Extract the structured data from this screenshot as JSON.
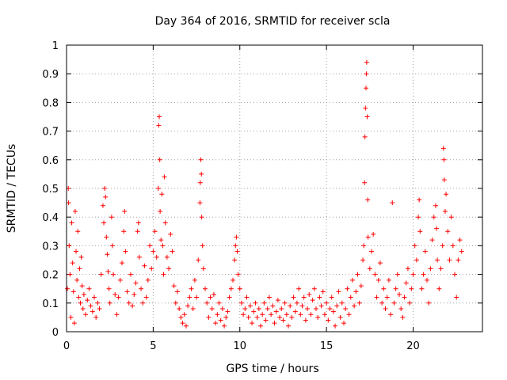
{
  "chart_data": {
    "type": "scatter",
    "title": "Day 364 of 2016, SRMTID for receiver scla",
    "xlabel": "GPS time / hours",
    "ylabel": "SRMTID / TECUs",
    "xlim": [
      0,
      24
    ],
    "ylim": [
      0,
      1
    ],
    "xticks": [
      "0",
      "5",
      "10",
      "15",
      "20"
    ],
    "yticks": [
      "0",
      "0.1",
      "0.2",
      "0.3",
      "0.4",
      "0.5",
      "0.6",
      "0.7",
      "0.8",
      "0.9",
      "1"
    ],
    "grid": true,
    "marker": "+",
    "color": "#ff0000",
    "series": [
      {
        "name": "scla",
        "points": [
          [
            0.05,
            0.15
          ],
          [
            0.1,
            0.5
          ],
          [
            0.12,
            0.45
          ],
          [
            0.15,
            0.3
          ],
          [
            0.2,
            0.2
          ],
          [
            0.25,
            0.05
          ],
          [
            0.3,
            0.38
          ],
          [
            0.35,
            0.24
          ],
          [
            0.4,
            0.14
          ],
          [
            0.45,
            0.03
          ],
          [
            0.5,
            0.42
          ],
          [
            0.55,
            0.28
          ],
          [
            0.6,
            0.18
          ],
          [
            0.65,
            0.35
          ],
          [
            0.7,
            0.12
          ],
          [
            0.75,
            0.22
          ],
          [
            0.8,
            0.1
          ],
          [
            0.85,
            0.26
          ],
          [
            0.9,
            0.16
          ],
          [
            0.95,
            0.08
          ],
          [
            1.0,
            0.13
          ],
          [
            1.1,
            0.06
          ],
          [
            1.2,
            0.11
          ],
          [
            1.3,
            0.15
          ],
          [
            1.4,
            0.09
          ],
          [
            1.5,
            0.07
          ],
          [
            1.6,
            0.12
          ],
          [
            1.7,
            0.05
          ],
          [
            1.8,
            0.1
          ],
          [
            1.9,
            0.08
          ],
          [
            2.0,
            0.2
          ],
          [
            2.1,
            0.44
          ],
          [
            2.15,
            0.38
          ],
          [
            2.2,
            0.5
          ],
          [
            2.25,
            0.47
          ],
          [
            2.3,
            0.33
          ],
          [
            2.35,
            0.27
          ],
          [
            2.4,
            0.21
          ],
          [
            2.45,
            0.15
          ],
          [
            2.5,
            0.1
          ],
          [
            2.6,
            0.4
          ],
          [
            2.65,
            0.3
          ],
          [
            2.7,
            0.2
          ],
          [
            2.8,
            0.13
          ],
          [
            2.9,
            0.06
          ],
          [
            3.0,
            0.12
          ],
          [
            3.1,
            0.18
          ],
          [
            3.2,
            0.24
          ],
          [
            3.3,
            0.35
          ],
          [
            3.35,
            0.42
          ],
          [
            3.4,
            0.28
          ],
          [
            3.5,
            0.14
          ],
          [
            3.6,
            0.1
          ],
          [
            3.7,
            0.2
          ],
          [
            3.8,
            0.09
          ],
          [
            3.9,
            0.13
          ],
          [
            4.0,
            0.17
          ],
          [
            4.1,
            0.35
          ],
          [
            4.15,
            0.38
          ],
          [
            4.2,
            0.26
          ],
          [
            4.3,
            0.15
          ],
          [
            4.4,
            0.1
          ],
          [
            4.5,
            0.23
          ],
          [
            4.6,
            0.12
          ],
          [
            4.7,
            0.18
          ],
          [
            4.8,
            0.3
          ],
          [
            4.9,
            0.22
          ],
          [
            5.0,
            0.28
          ],
          [
            5.1,
            0.35
          ],
          [
            5.2,
            0.26
          ],
          [
            5.3,
            0.5
          ],
          [
            5.32,
            0.72
          ],
          [
            5.35,
            0.75
          ],
          [
            5.38,
            0.6
          ],
          [
            5.4,
            0.42
          ],
          [
            5.45,
            0.32
          ],
          [
            5.5,
            0.48
          ],
          [
            5.55,
            0.3
          ],
          [
            5.6,
            0.2
          ],
          [
            5.65,
            0.54
          ],
          [
            5.7,
            0.38
          ],
          [
            5.8,
            0.26
          ],
          [
            5.9,
            0.22
          ],
          [
            6.0,
            0.34
          ],
          [
            6.1,
            0.28
          ],
          [
            6.2,
            0.16
          ],
          [
            6.3,
            0.1
          ],
          [
            6.4,
            0.14
          ],
          [
            6.5,
            0.08
          ],
          [
            6.6,
            0.05
          ],
          [
            6.7,
            0.03
          ],
          [
            6.8,
            0.06
          ],
          [
            6.9,
            0.02
          ],
          [
            7.0,
            0.09
          ],
          [
            7.1,
            0.12
          ],
          [
            7.2,
            0.15
          ],
          [
            7.3,
            0.08
          ],
          [
            7.4,
            0.18
          ],
          [
            7.5,
            0.12
          ],
          [
            7.6,
            0.25
          ],
          [
            7.7,
            0.45
          ],
          [
            7.72,
            0.52
          ],
          [
            7.75,
            0.6
          ],
          [
            7.78,
            0.55
          ],
          [
            7.8,
            0.4
          ],
          [
            7.85,
            0.3
          ],
          [
            7.9,
            0.22
          ],
          [
            8.0,
            0.15
          ],
          [
            8.1,
            0.1
          ],
          [
            8.2,
            0.05
          ],
          [
            8.3,
            0.12
          ],
          [
            8.4,
            0.08
          ],
          [
            8.5,
            0.13
          ],
          [
            8.6,
            0.03
          ],
          [
            8.7,
            0.06
          ],
          [
            8.8,
            0.1
          ],
          [
            8.9,
            0.04
          ],
          [
            9.0,
            0.08
          ],
          [
            9.1,
            0.02
          ],
          [
            9.2,
            0.05
          ],
          [
            9.3,
            0.07
          ],
          [
            9.4,
            0.12
          ],
          [
            9.5,
            0.15
          ],
          [
            9.6,
            0.18
          ],
          [
            9.7,
            0.25
          ],
          [
            9.75,
            0.3
          ],
          [
            9.8,
            0.33
          ],
          [
            9.85,
            0.28
          ],
          [
            9.9,
            0.2
          ],
          [
            10.0,
            0.15
          ],
          [
            10.1,
            0.1
          ],
          [
            10.2,
            0.06
          ],
          [
            10.3,
            0.08
          ],
          [
            10.4,
            0.12
          ],
          [
            10.5,
            0.05
          ],
          [
            10.6,
            0.09
          ],
          [
            10.7,
            0.03
          ],
          [
            10.8,
            0.07
          ],
          [
            10.9,
            0.1
          ],
          [
            11.0,
            0.05
          ],
          [
            11.1,
            0.08
          ],
          [
            11.2,
            0.02
          ],
          [
            11.3,
            0.06
          ],
          [
            11.4,
            0.1
          ],
          [
            11.5,
            0.04
          ],
          [
            11.6,
            0.08
          ],
          [
            11.7,
            0.12
          ],
          [
            11.8,
            0.06
          ],
          [
            11.9,
            0.09
          ],
          [
            12.0,
            0.03
          ],
          [
            12.1,
            0.07
          ],
          [
            12.2,
            0.11
          ],
          [
            12.3,
            0.05
          ],
          [
            12.4,
            0.08
          ],
          [
            12.5,
            0.04
          ],
          [
            12.6,
            0.1
          ],
          [
            12.7,
            0.06
          ],
          [
            12.8,
            0.02
          ],
          [
            12.9,
            0.09
          ],
          [
            13.0,
            0.05
          ],
          [
            13.1,
            0.12
          ],
          [
            13.2,
            0.07
          ],
          [
            13.3,
            0.1
          ],
          [
            13.4,
            0.15
          ],
          [
            13.5,
            0.06
          ],
          [
            13.6,
            0.09
          ],
          [
            13.7,
            0.12
          ],
          [
            13.8,
            0.04
          ],
          [
            13.9,
            0.08
          ],
          [
            14.0,
            0.13
          ],
          [
            14.1,
            0.06
          ],
          [
            14.2,
            0.11
          ],
          [
            14.3,
            0.15
          ],
          [
            14.4,
            0.08
          ],
          [
            14.5,
            0.05
          ],
          [
            14.6,
            0.12
          ],
          [
            14.7,
            0.09
          ],
          [
            14.8,
            0.14
          ],
          [
            14.9,
            0.06
          ],
          [
            15.0,
            0.1
          ],
          [
            15.1,
            0.04
          ],
          [
            15.2,
            0.08
          ],
          [
            15.3,
            0.12
          ],
          [
            15.4,
            0.07
          ],
          [
            15.5,
            0.02
          ],
          [
            15.6,
            0.09
          ],
          [
            15.7,
            0.14
          ],
          [
            15.8,
            0.05
          ],
          [
            15.9,
            0.1
          ],
          [
            16.0,
            0.03
          ],
          [
            16.1,
            0.08
          ],
          [
            16.2,
            0.15
          ],
          [
            16.3,
            0.06
          ],
          [
            16.4,
            0.12
          ],
          [
            16.5,
            0.18
          ],
          [
            16.6,
            0.09
          ],
          [
            16.7,
            0.14
          ],
          [
            16.8,
            0.2
          ],
          [
            16.9,
            0.1
          ],
          [
            17.0,
            0.16
          ],
          [
            17.1,
            0.25
          ],
          [
            17.15,
            0.3
          ],
          [
            17.2,
            0.52
          ],
          [
            17.22,
            0.68
          ],
          [
            17.25,
            0.78
          ],
          [
            17.28,
            0.85
          ],
          [
            17.3,
            0.9
          ],
          [
            17.32,
            0.94
          ],
          [
            17.35,
            0.75
          ],
          [
            17.38,
            0.46
          ],
          [
            17.4,
            0.33
          ],
          [
            17.5,
            0.22
          ],
          [
            17.6,
            0.28
          ],
          [
            17.7,
            0.34
          ],
          [
            17.8,
            0.2
          ],
          [
            17.9,
            0.12
          ],
          [
            18.0,
            0.18
          ],
          [
            18.1,
            0.24
          ],
          [
            18.2,
            0.1
          ],
          [
            18.3,
            0.15
          ],
          [
            18.4,
            0.08
          ],
          [
            18.5,
            0.12
          ],
          [
            18.6,
            0.18
          ],
          [
            18.7,
            0.06
          ],
          [
            18.8,
            0.45
          ],
          [
            18.9,
            0.1
          ],
          [
            19.0,
            0.15
          ],
          [
            19.1,
            0.2
          ],
          [
            19.2,
            0.13
          ],
          [
            19.3,
            0.08
          ],
          [
            19.4,
            0.05
          ],
          [
            19.5,
            0.12
          ],
          [
            19.6,
            0.17
          ],
          [
            19.7,
            0.22
          ],
          [
            19.8,
            0.1
          ],
          [
            19.9,
            0.15
          ],
          [
            20.0,
            0.2
          ],
          [
            20.1,
            0.3
          ],
          [
            20.2,
            0.25
          ],
          [
            20.3,
            0.4
          ],
          [
            20.35,
            0.46
          ],
          [
            20.4,
            0.35
          ],
          [
            20.5,
            0.15
          ],
          [
            20.6,
            0.2
          ],
          [
            20.7,
            0.28
          ],
          [
            20.8,
            0.18
          ],
          [
            20.9,
            0.1
          ],
          [
            21.0,
            0.22
          ],
          [
            21.1,
            0.32
          ],
          [
            21.2,
            0.4
          ],
          [
            21.3,
            0.44
          ],
          [
            21.35,
            0.36
          ],
          [
            21.4,
            0.25
          ],
          [
            21.5,
            0.15
          ],
          [
            21.6,
            0.22
          ],
          [
            21.7,
            0.3
          ],
          [
            21.75,
            0.64
          ],
          [
            21.78,
            0.6
          ],
          [
            21.8,
            0.53
          ],
          [
            21.85,
            0.42
          ],
          [
            21.9,
            0.48
          ],
          [
            22.0,
            0.35
          ],
          [
            22.1,
            0.25
          ],
          [
            22.2,
            0.4
          ],
          [
            22.3,
            0.3
          ],
          [
            22.4,
            0.2
          ],
          [
            22.5,
            0.12
          ],
          [
            22.6,
            0.25
          ],
          [
            22.7,
            0.32
          ],
          [
            22.8,
            0.28
          ]
        ]
      }
    ]
  }
}
